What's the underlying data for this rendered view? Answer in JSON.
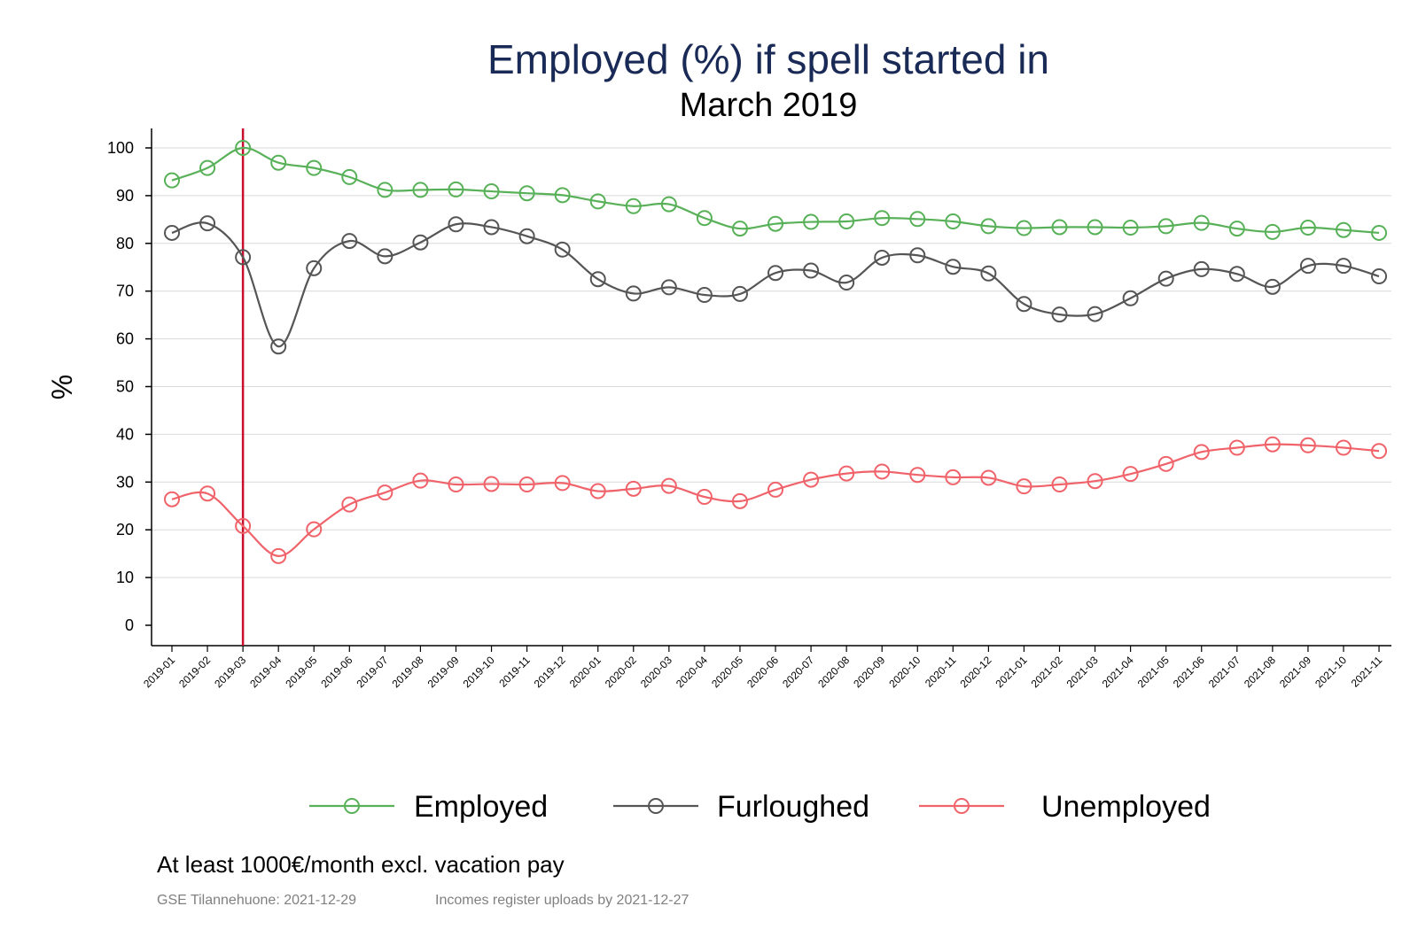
{
  "chart_data": {
    "type": "line",
    "title": "Employed (%) if spell started in",
    "subtitle": "March 2019",
    "ylabel": "%",
    "xlabel": "",
    "ylim": [
      -4,
      104
    ],
    "yticks": [
      0,
      10,
      20,
      30,
      40,
      50,
      60,
      70,
      80,
      90,
      100
    ],
    "grid": true,
    "legend_position": "bottom",
    "reference_line": {
      "x": "2019-03",
      "color": "#c8102e"
    },
    "categories": [
      "2019-01",
      "2019-02",
      "2019-03",
      "2019-04",
      "2019-05",
      "2019-06",
      "2019-07",
      "2019-08",
      "2019-09",
      "2019-10",
      "2019-11",
      "2019-12",
      "2020-01",
      "2020-02",
      "2020-03",
      "2020-04",
      "2020-05",
      "2020-06",
      "2020-07",
      "2020-08",
      "2020-09",
      "2020-10",
      "2020-11",
      "2020-12",
      "2021-01",
      "2021-02",
      "2021-03",
      "2021-04",
      "2021-05",
      "2021-06",
      "2021-07",
      "2021-08",
      "2021-09",
      "2021-10",
      "2021-11"
    ],
    "series": [
      {
        "name": "Employed",
        "color": "#58b158",
        "values": [
          93.2,
          95.8,
          100.0,
          96.9,
          95.8,
          93.9,
          91.2,
          91.2,
          91.3,
          90.9,
          90.5,
          90.1,
          88.8,
          87.8,
          88.2,
          85.3,
          83.1,
          84.1,
          84.5,
          84.6,
          85.3,
          85.1,
          84.6,
          83.6,
          83.2,
          83.4,
          83.4,
          83.3,
          83.6,
          84.3,
          83.1,
          82.4,
          83.3,
          82.8,
          82.2
        ]
      },
      {
        "name": "Furloughed",
        "color": "#555555",
        "values": [
          82.2,
          84.2,
          77.1,
          58.4,
          74.8,
          80.5,
          77.3,
          80.2,
          84.0,
          83.4,
          81.5,
          78.7,
          72.5,
          69.5,
          70.8,
          69.2,
          69.4,
          73.8,
          74.3,
          71.8,
          77.0,
          77.5,
          75.1,
          73.7,
          67.3,
          65.1,
          65.2,
          68.5,
          72.6,
          74.6,
          73.6,
          70.9,
          75.3,
          75.3,
          73.1
        ]
      },
      {
        "name": "Unemployed",
        "color": "#f0636a",
        "values": [
          26.4,
          27.6,
          20.8,
          14.5,
          20.1,
          25.3,
          27.8,
          30.3,
          29.5,
          29.6,
          29.5,
          29.8,
          28.1,
          28.6,
          29.2,
          26.9,
          26.0,
          28.4,
          30.5,
          31.8,
          32.2,
          31.5,
          31.0,
          30.9,
          29.1,
          29.5,
          30.2,
          31.7,
          33.8,
          36.3,
          37.2,
          37.9,
          37.7,
          37.2,
          36.5
        ]
      }
    ]
  },
  "footer": {
    "note": "At least 1000€/month excl. vacation pay",
    "source_left": "GSE Tilannehuone: 2021-12-29",
    "source_right": "Incomes register uploads by 2021-12-27"
  }
}
